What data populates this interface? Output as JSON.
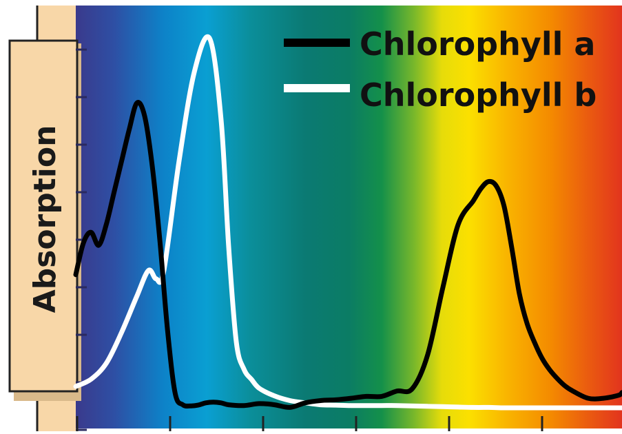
{
  "chart_data": {
    "type": "line",
    "title": "",
    "xlabel": "",
    "ylabel": "Absorption",
    "xlim": [
      0,
      100
    ],
    "ylim": [
      0,
      100
    ],
    "x_tick_labels": [
      "",
      "",
      "",
      "",
      "",
      ""
    ],
    "y_tick_labels": [
      "",
      "",
      "",
      "",
      "",
      "",
      "",
      "",
      ""
    ],
    "grid": false,
    "legend_position": "top-right",
    "background": "visible-spectrum gradient, violet to red",
    "series": [
      {
        "name": "Chlorophyll a",
        "color": "#000000",
        "x": [
          0,
          1.4,
          2.8,
          4.2,
          5.6,
          7.0,
          8.4,
          9.8,
          11.2,
          12.6,
          14.0,
          15.4,
          16.8,
          18.2,
          19.6,
          21.0,
          22.4,
          23.8,
          25.2,
          26.6,
          28.0,
          30.8,
          33.6,
          36.4,
          39.2,
          42.0,
          44.8,
          47.6,
          50.4,
          53.2,
          56.0,
          58.8,
          61.6,
          64.4,
          67.2,
          70.0,
          72.8,
          74.2,
          75.6,
          77.0,
          78.4,
          79.8,
          81.2,
          82.6,
          84.0,
          85.4,
          86.8,
          88.2,
          89.6,
          91.0,
          93.8,
          96.6,
          99.4,
          100
        ],
        "y": [
          34.9,
          43.2,
          46.0,
          42.6,
          48.1,
          56.4,
          64.7,
          73.0,
          79.9,
          76.5,
          63.4,
          43.8,
          20.4,
          3.8,
          0.8,
          0.5,
          0.7,
          1.3,
          1.5,
          1.3,
          0.8,
          0.6,
          1.1,
          0.8,
          0.1,
          1.3,
          1.9,
          2.1,
          2.5,
          3.0,
          3.0,
          4.4,
          5.0,
          13.8,
          31.5,
          48.0,
          54.3,
          57.5,
          59.3,
          58.1,
          52.9,
          42.1,
          30.0,
          22.2,
          17.1,
          12.9,
          9.9,
          7.6,
          5.7,
          4.4,
          2.5,
          2.5,
          3.3,
          4.0
        ]
      },
      {
        "name": "Chlorophyll b",
        "color": "#ffffff",
        "x": [
          0,
          2.8,
          5.6,
          8.4,
          11.2,
          13.3,
          14.7,
          16.1,
          18.9,
          21.7,
          24.5,
          26.6,
          28.0,
          29.4,
          30.8,
          32.2,
          33.6,
          36.4,
          39.2,
          42.0,
          44.8,
          47.6,
          50.4,
          53.2,
          56.0,
          58.8,
          61.6,
          64.4,
          67.2,
          70.0,
          72.8,
          75.6,
          78.4,
          81.2,
          84.0,
          86.8,
          89.6,
          92.4,
          95.2,
          98.0,
          100
        ],
        "y": [
          5.6,
          7.5,
          11.7,
          19.8,
          29.3,
          36.0,
          33.8,
          35.8,
          64.6,
          88.0,
          96.8,
          75.6,
          42.1,
          17.2,
          10.1,
          7.4,
          5.1,
          3.1,
          1.9,
          1.3,
          0.8,
          0.7,
          0.6,
          0.6,
          0.6,
          0.6,
          0.5,
          0.4,
          0.3,
          0.2,
          0.1,
          0.1,
          0.0,
          0.0,
          0.0,
          0.0,
          0.0,
          0.0,
          0.0,
          0.0,
          0.0
        ]
      }
    ]
  }
}
